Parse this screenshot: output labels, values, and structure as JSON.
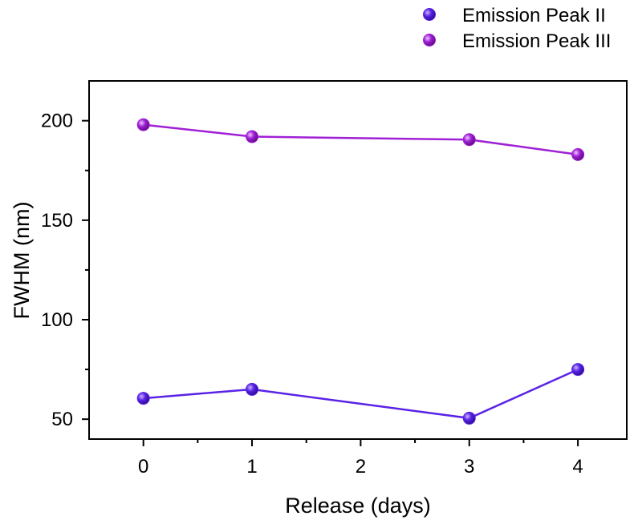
{
  "chart_data": {
    "type": "line",
    "xlabel": "Release (days)",
    "ylabel": "FWHM (nm)",
    "xlim": [
      -0.5,
      4.45
    ],
    "ylim": [
      40,
      220
    ],
    "x_ticks": [
      0,
      1,
      2,
      3,
      4
    ],
    "y_ticks": [
      50,
      100,
      150,
      200
    ],
    "grid": false,
    "legend_position": "top-right, outside plot",
    "series": [
      {
        "name": "Emission Peak II",
        "color": "#5a22e6",
        "x": [
          0,
          1,
          3,
          4
        ],
        "y": [
          60.5,
          65,
          50.5,
          75
        ]
      },
      {
        "name": "Emission Peak III",
        "color": "#a020d6",
        "x": [
          0,
          1,
          3,
          4
        ],
        "y": [
          198,
          192,
          190.5,
          183
        ]
      }
    ]
  }
}
